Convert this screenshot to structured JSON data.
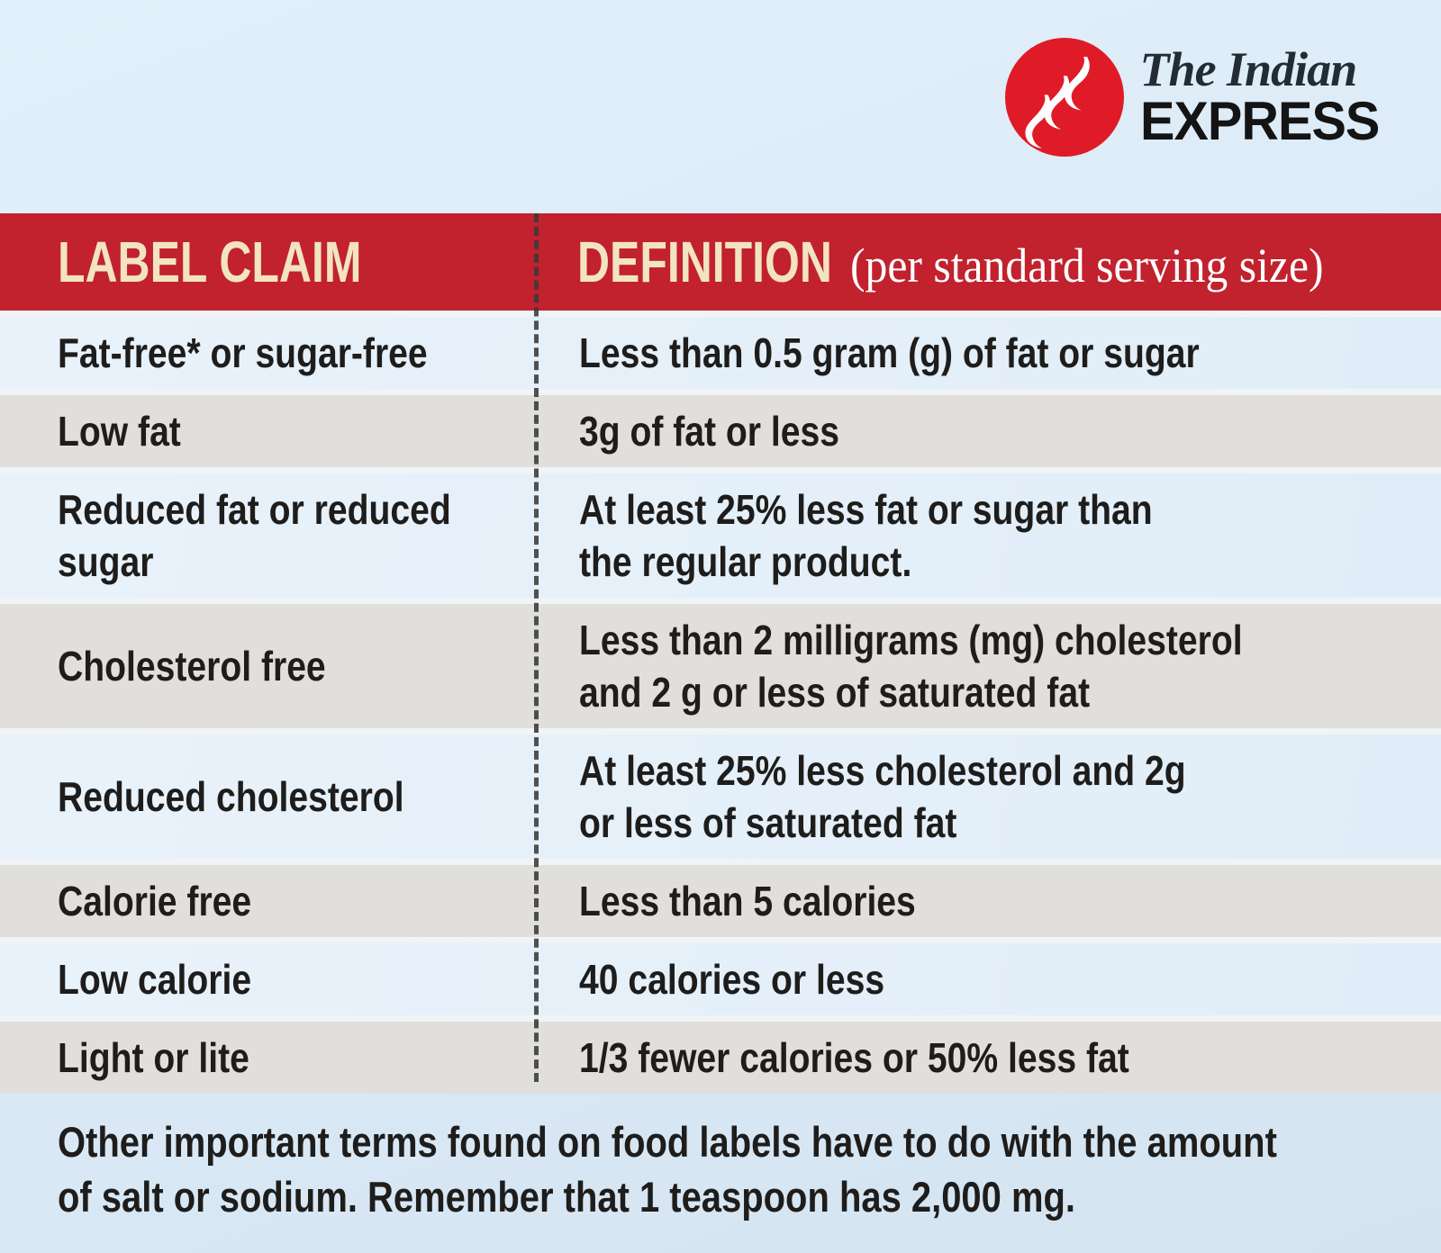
{
  "logo": {
    "name_top": "The Indian",
    "name_bottom": "EXPRESS"
  },
  "table": {
    "header": {
      "col1": "LABEL CLAIM",
      "col2": "DEFINITION",
      "col2_note": "(per standard serving size)"
    },
    "rows": [
      {
        "claim": [
          "Fat-free* or sugar-free"
        ],
        "definition": [
          "Less than 0.5 gram (g) of fat or sugar"
        ]
      },
      {
        "claim": [
          "Low fat"
        ],
        "definition": [
          "3g of fat or less"
        ]
      },
      {
        "claim": [
          "Reduced fat or reduced",
          "sugar"
        ],
        "definition": [
          "At least 25% less fat or sugar than",
          "the regular product."
        ]
      },
      {
        "claim": [
          "Cholesterol free"
        ],
        "definition": [
          "Less than 2 milligrams (mg) cholesterol",
          "and 2 g or less of saturated fat"
        ]
      },
      {
        "claim": [
          "Reduced cholesterol"
        ],
        "definition": [
          "At least 25% less cholesterol and 2g",
          "or less of saturated fat"
        ]
      },
      {
        "claim": [
          "Calorie free"
        ],
        "definition": [
          "Less than 5 calories"
        ]
      },
      {
        "claim": [
          "Low calorie"
        ],
        "definition": [
          "40 calories or less"
        ]
      },
      {
        "claim": [
          "Light or lite"
        ],
        "definition": [
          "1/3 fewer calories or 50% less fat"
        ]
      }
    ]
  },
  "footer": {
    "lines": [
      "Other important terms found on food labels have to do with the amount",
      "of salt or sodium. Remember that 1 teaspoon has 2,000 mg."
    ]
  },
  "colors": {
    "header_red": "#c2212e",
    "logo_red": "#df1b27",
    "header_text_cream": "#f2e4c2",
    "header_note_white": "#ffffff",
    "row_blue": "#e4eff8",
    "row_gray": "#e1dfdb",
    "page_blue": "#dcebf7",
    "text_dark": "#1e1d1b",
    "divider_dark": "#3a3a3a"
  }
}
